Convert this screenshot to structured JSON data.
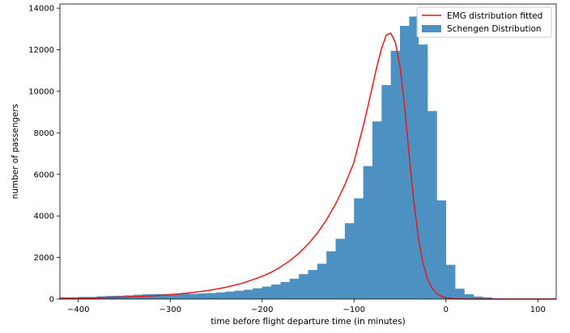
{
  "chart_data": {
    "type": "bar",
    "xlabel": "time before flight departure time (in minutes)",
    "ylabel": "number of passengers",
    "xlim": [
      -420,
      120
    ],
    "ylim": [
      0,
      14200
    ],
    "xticks": [
      -400,
      -300,
      -200,
      -100,
      0,
      100
    ],
    "yticks": [
      0,
      2000,
      4000,
      6000,
      8000,
      10000,
      12000,
      14000
    ],
    "grid": false,
    "legend_position": "top-right",
    "series": [
      {
        "name": "Schengen Distribution",
        "type": "histogram",
        "color": "#4c91c2",
        "bin_width": 10,
        "bin_start": -420,
        "values": [
          80,
          80,
          100,
          100,
          130,
          150,
          160,
          180,
          210,
          230,
          240,
          240,
          250,
          260,
          250,
          270,
          290,
          320,
          360,
          400,
          450,
          520,
          600,
          700,
          820,
          980,
          1200,
          1400,
          1700,
          2300,
          2900,
          3650,
          4850,
          6400,
          8550,
          10300,
          11950,
          13150,
          13600,
          12250,
          9050,
          4750,
          1650,
          500,
          230,
          120,
          80,
          30,
          20,
          10,
          10,
          10,
          10,
          10
        ]
      },
      {
        "name": "EMG distribution fitted",
        "type": "line",
        "color": "#e41a1c",
        "x": [
          -420,
          -400,
          -380,
          -360,
          -340,
          -320,
          -300,
          -280,
          -260,
          -240,
          -220,
          -200,
          -190,
          -180,
          -170,
          -160,
          -150,
          -140,
          -130,
          -120,
          -110,
          -100,
          -95,
          -90,
          -85,
          -80,
          -75,
          -70,
          -65,
          -60,
          -55,
          -50,
          -45,
          -40,
          -35,
          -30,
          -25,
          -20,
          -15,
          -10,
          -5,
          0,
          10,
          20,
          40,
          60,
          80,
          100,
          120
        ],
        "y": [
          25,
          35,
          55,
          80,
          110,
          150,
          210,
          290,
          400,
          560,
          780,
          1090,
          1290,
          1540,
          1840,
          2200,
          2640,
          3170,
          3810,
          4580,
          5500,
          6590,
          7470,
          8310,
          9250,
          10240,
          11220,
          12060,
          12700,
          12800,
          12350,
          11200,
          9300,
          6900,
          4700,
          2950,
          1750,
          970,
          520,
          270,
          135,
          65,
          15,
          3,
          0,
          0,
          0,
          0,
          0
        ]
      }
    ]
  }
}
